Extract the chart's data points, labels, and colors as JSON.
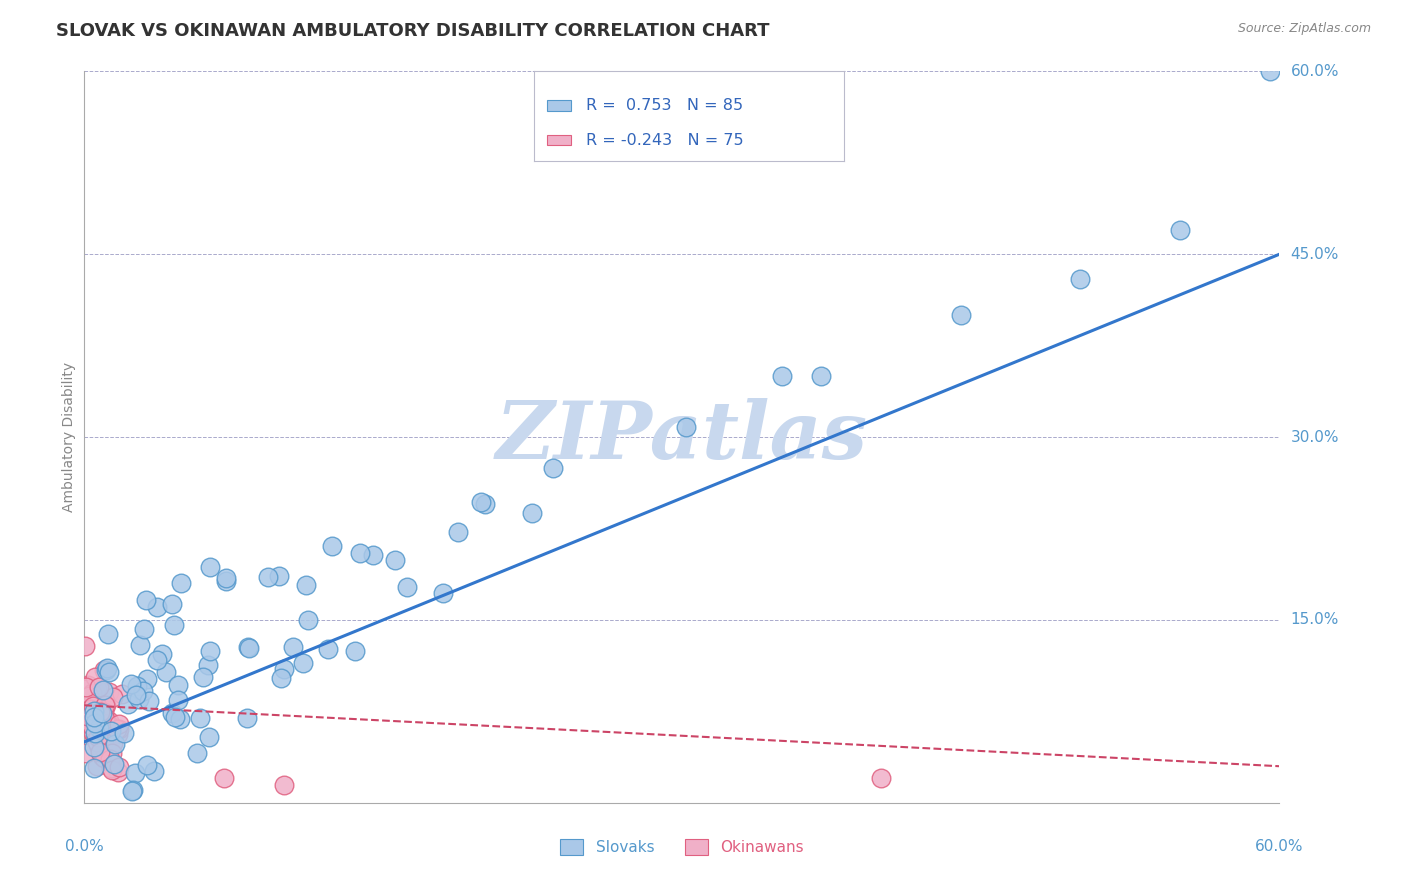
{
  "title": "SLOVAK VS OKINAWAN AMBULATORY DISABILITY CORRELATION CHART",
  "source": "Source: ZipAtlas.com",
  "ylabel": "Ambulatory Disability",
  "xlim": [
    0,
    60
  ],
  "ylim": [
    0,
    60
  ],
  "slovak_R": 0.753,
  "slovak_N": 85,
  "okinawan_R": -0.243,
  "okinawan_N": 75,
  "slovak_color": "#aac8e8",
  "slovak_edge_color": "#5599cc",
  "okinawan_color": "#f0b0c8",
  "okinawan_edge_color": "#e06080",
  "trend_slovak_color": "#3377cc",
  "trend_okinawan_color": "#cc4466",
  "background_color": "#ffffff",
  "grid_color": "#aaaacc",
  "title_color": "#333333",
  "axis_label_color": "#5599cc",
  "watermark_color": "#c8d8ee",
  "legend_text_color": "#3366bb",
  "legend_border_color": "#bbbbcc",
  "ytick_vals": [
    15,
    30,
    45,
    60
  ],
  "ytick_labels": [
    "15.0%",
    "30.0%",
    "45.0%",
    "60.0%"
  ],
  "trend_sk_x0": 0,
  "trend_sk_y0": 5,
  "trend_sk_x1": 60,
  "trend_sk_y1": 45,
  "trend_ok_x0": 0,
  "trend_ok_y0": 8,
  "trend_ok_x1": 60,
  "trend_ok_y1": 3
}
